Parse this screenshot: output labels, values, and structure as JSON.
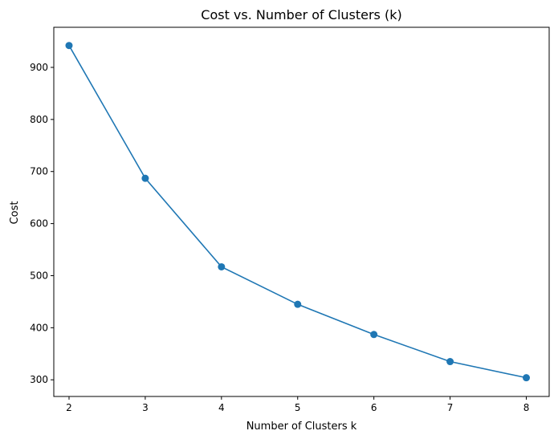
{
  "chart_data": {
    "type": "line",
    "title": "Cost vs. Number of Clusters (k)",
    "xlabel": "Number of Clusters k",
    "ylabel": "Cost",
    "x": [
      2,
      3,
      4,
      5,
      6,
      7,
      8
    ],
    "series": [
      {
        "values": [
          942,
          687,
          517,
          445,
          387,
          335,
          304
        ],
        "color": "#1f77b4",
        "marker": "circle"
      }
    ],
    "xlim": [
      1.8,
      8.3
    ],
    "ylim": [
      268,
      977
    ],
    "xticks": [
      2,
      3,
      4,
      5,
      6,
      7,
      8
    ],
    "yticks": [
      300,
      400,
      500,
      600,
      700,
      800,
      900
    ],
    "grid": false,
    "legend": false
  }
}
